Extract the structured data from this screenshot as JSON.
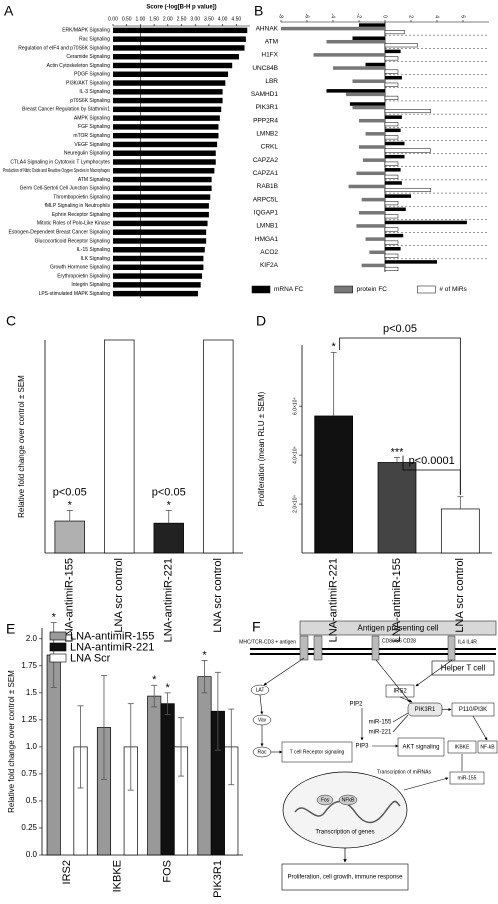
{
  "chart_data": [
    {
      "type": "bar",
      "orientation": "horizontal",
      "panel": "A",
      "title": "Score (-log[B-H p value])",
      "categories": [
        "ERK/MAPK Signaling",
        "Rac Signaling",
        "Regulation of eIF4 and p70S6K Signaling",
        "Ceramide Signaling",
        "Actin Cytoskeleton Signaling",
        "PDGF Signaling",
        "PI3K/AKT Signaling",
        "IL-3 Signaling",
        "p70S6K Signaling",
        "Breast Cancer Regulation by Stathmin1",
        "AMPK Signaling",
        "FGF Signaling",
        "mTOR Signaling",
        "VEGF Signaling",
        "Neuregulin Signaling",
        "CTLA4 Signaling in Cytotoxic T Lymphocytes",
        "Production of Nitric Oxide and Reactive Oxygen Species in Macrophages",
        "ATM Signaling",
        "Germ Cell-Sertoli Cell Junction Signaling",
        "Thrombopoietin Signaling",
        "fMLP Signaling in Neutrophils",
        "Ephrin Receptor Signaling",
        "Mitotic Roles of Polo-Like Kinase",
        "Estrogen-Dependent Breast Cancer Signaling",
        "Glucocorticoid Receptor Signaling",
        "IL-15 Signaling",
        "ILK Signaling",
        "Growth Hormone Signaling",
        "Erythropoietin Signaling",
        "Integrin Signaling",
        "LPS-stimulated MAPK Signaling"
      ],
      "values": [
        4.9,
        4.85,
        4.8,
        4.6,
        4.35,
        4.2,
        4.1,
        4.0,
        4.0,
        3.95,
        3.9,
        3.85,
        3.85,
        3.8,
        3.75,
        3.75,
        3.7,
        3.6,
        3.6,
        3.55,
        3.5,
        3.5,
        3.45,
        3.4,
        3.4,
        3.35,
        3.3,
        3.3,
        3.25,
        3.2,
        3.1
      ],
      "color": "#000000",
      "xlim": [
        0,
        5
      ],
      "xticks": [
        {
          "value": 0,
          "label": "0.00"
        },
        {
          "value": 0.5,
          "label": "0.50"
        },
        {
          "value": 1,
          "label": "1.00"
        },
        {
          "value": 1.5,
          "label": "1.50"
        },
        {
          "value": 2,
          "label": "2.00"
        },
        {
          "value": 2.5,
          "label": "2.50"
        },
        {
          "value": 3,
          "label": "3.00"
        },
        {
          "value": 3.5,
          "label": "3.50"
        },
        {
          "value": 4,
          "label": "4.00"
        },
        {
          "value": 4.5,
          "label": "4.50"
        }
      ],
      "threshold": 1
    },
    {
      "type": "bar",
      "orientation": "horizontal",
      "panel": "B",
      "categories": [
        "AHNAK",
        "ATM",
        "H1FX",
        "UNC84B",
        "LBR",
        "SAMHD1",
        "PIK3R1",
        "PPP2R4",
        "LMNB2",
        "CRKL",
        "CAPZA2",
        "CAPZA1",
        "RAB1B",
        "ARPC5L",
        "IQGAP1",
        "LMNB1",
        "HMGA1",
        "ACO2",
        "KIF2A"
      ],
      "series": [
        {
          "name": "mRNA FC",
          "color": "#000000",
          "values": [
            -2,
            -2.5,
            1.2,
            -1.5,
            1.3,
            -4.5,
            -2.7,
            1.3,
            1.2,
            1.5,
            1.5,
            1.2,
            1.3,
            2,
            1.6,
            6.3,
            1.4,
            1.2,
            4
          ]
        },
        {
          "name": "protein FC",
          "color": "#777777",
          "values": [
            -8,
            -4.5,
            -5.5,
            -4,
            -2.5,
            -3,
            -2.5,
            -2,
            -1.5,
            -2,
            -1.7,
            -2.2,
            -2.8,
            -1.8,
            -2,
            -2.2,
            -1.5,
            -1.2,
            -1.8
          ]
        },
        {
          "name": "# of MiRs",
          "color": "#ffffff",
          "values": [
            1.5,
            2.5,
            1,
            1,
            1,
            1,
            3.5,
            1,
            1,
            3.5,
            1,
            1,
            3.5,
            1,
            1,
            1,
            1,
            1,
            1
          ]
        }
      ],
      "xlim": [
        -8,
        8
      ],
      "xticks": [
        -8,
        -6,
        -4,
        -2,
        0,
        2,
        4,
        6
      ],
      "legend": "bottom"
    },
    {
      "type": "bar",
      "panel": "C",
      "ylabel": "Relative fold change over control  ± SEM",
      "categories": [
        "LNA-antimiR-155",
        "LNA scr control",
        "LNA-antimiR-221",
        "LNA scr control"
      ],
      "values": [
        0.15,
        1,
        0.14,
        1
      ],
      "errors": [
        0.05,
        null,
        0.06,
        null
      ],
      "colors": [
        "#b0b0b0",
        "#ffffff",
        "#222222",
        "#ffffff"
      ],
      "ylim": [
        0,
        1
      ],
      "markers": [
        {
          "text": "*",
          "index": 0
        },
        {
          "text": "p<0.05",
          "index": 0
        },
        {
          "text": "*",
          "index": 2
        },
        {
          "text": "p<0.05",
          "index": 2
        }
      ]
    },
    {
      "type": "bar",
      "panel": "D",
      "ylabel": "Proliferation (mean RLU ± SEM)",
      "categories": [
        "LNA-antimiR-221",
        "LNA-antimiR-155",
        "LNA scr control"
      ],
      "values": [
        56000,
        37000,
        18000
      ],
      "errors": [
        26000,
        2000,
        5000
      ],
      "colors": [
        "#111111",
        "#444444",
        "#ffffff"
      ],
      "ylim": [
        0,
        85000
      ],
      "yticks": [
        {
          "value": 20000,
          "label": "2.0×10⁴"
        },
        {
          "value": 40000,
          "label": "4.0×10⁴"
        },
        {
          "value": 60000,
          "label": "6.0×10⁴"
        }
      ],
      "markers": [
        {
          "text": "*",
          "index": 0
        },
        {
          "text": "***",
          "index": 1
        }
      ],
      "comparisons": [
        {
          "text": "p<0.05",
          "between": [
            0,
            2
          ]
        },
        {
          "text": "p<0.0001",
          "between": [
            1,
            2
          ]
        }
      ]
    },
    {
      "type": "bar",
      "panel": "E",
      "ylabel": "Relative fold change over control  ± SEM",
      "categories": [
        "IRS2",
        "IKBKE",
        "FOS",
        "PIK3R1"
      ],
      "series": [
        {
          "name": "LNA-antimiR-155",
          "color": "#999999",
          "values": [
            1.85,
            1.18,
            1.47,
            1.65
          ],
          "errors": [
            0.3,
            0.48,
            0.1,
            0.15
          ]
        },
        {
          "name": "LNA-antimiR-221",
          "color": "#111111",
          "values": [
            null,
            null,
            1.4,
            1.33
          ],
          "errors": [
            null,
            null,
            0.1,
            0.36
          ]
        },
        {
          "name": "LNA Scr",
          "color": "#ffffff",
          "values": [
            1,
            1,
            1,
            1
          ],
          "errors": [
            0.38,
            0.4,
            0.27,
            0.35
          ]
        }
      ],
      "ylim": [
        0,
        2.1
      ],
      "yticks": [
        {
          "value": 0,
          "label": "0.0"
        },
        0.25,
        0.5,
        0.75,
        {
          "value": 1,
          "label": "1.0"
        },
        1.25,
        1.5,
        1.75,
        {
          "value": 2,
          "label": "2.0"
        }
      ],
      "legend": "top-left",
      "markers": [
        {
          "text": "*",
          "series": 0,
          "index": 0
        },
        {
          "text": "*",
          "series": 0,
          "index": 2
        },
        {
          "text": "*",
          "series": 1,
          "index": 2
        },
        {
          "text": "*",
          "series": 0,
          "index": 3
        }
      ]
    }
  ],
  "diagram": {
    "panel": "F",
    "labels": {
      "apc": "Antigen presenting cell",
      "tcell": "Helper T cell",
      "mhc": "MHC/TCR-CD3 + antigen",
      "cd28": "CD80/86 CD28",
      "il4": "IL4 IL4R",
      "lat": "LAT",
      "vav": "Vav",
      "rac": "Rac",
      "pip2": "PIP2",
      "irs2": "IRS2",
      "pik3r1": "PIK3R1",
      "p110": "P110/PI3K",
      "mir155a": "miR-155",
      "mir221": "miR-221",
      "pip3": "PIP3",
      "tcr": "T cell Receptor signaling",
      "akt": "AKT signaling",
      "ikbke": "IKBKE",
      "nfkb": "NF-kB",
      "mir155b": "miR-155",
      "trmirna": "Transcription of miRNAs",
      "trgenes": "Transcription of genes",
      "fos": "Fos",
      "nfkb2": "NFkB",
      "outcome": "Proliferation, cell growth, immune response"
    }
  }
}
